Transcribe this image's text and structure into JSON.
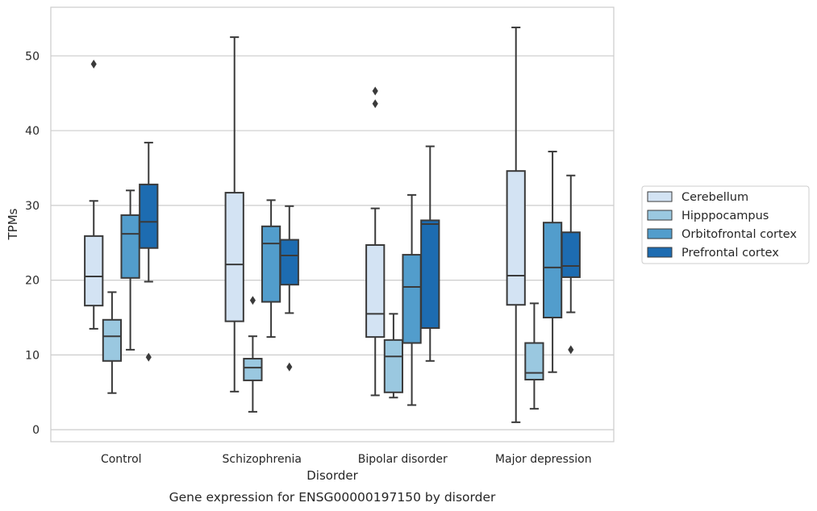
{
  "chart_data": {
    "type": "box",
    "title": "",
    "caption": "Gene expression for ENSG00000197150 by disorder",
    "xlabel": "Disorder",
    "ylabel": "TPMs",
    "ylim": [
      -1.6,
      56.5
    ],
    "yticks": [
      0,
      10,
      20,
      30,
      40,
      50
    ],
    "grid": "horizontal",
    "legend_position": "right",
    "categories": [
      "Control",
      "Schizophrenia",
      "Bipolar disorder",
      "Major depression"
    ],
    "series": [
      {
        "name": "Cerebellum",
        "color": "#d3e3f3",
        "boxes": [
          {
            "whisker_low": 13.5,
            "q1": 16.6,
            "median": 20.5,
            "q3": 25.9,
            "whisker_high": 30.6,
            "outliers": [
              48.9
            ]
          },
          {
            "whisker_low": 5.1,
            "q1": 14.5,
            "median": 22.1,
            "q3": 31.7,
            "whisker_high": 52.5,
            "outliers": []
          },
          {
            "whisker_low": 4.6,
            "q1": 12.4,
            "median": 15.5,
            "q3": 24.7,
            "whisker_high": 29.6,
            "outliers": [
              43.6,
              45.3
            ]
          },
          {
            "whisker_low": 1.0,
            "q1": 16.7,
            "median": 20.6,
            "q3": 34.6,
            "whisker_high": 53.8,
            "outliers": []
          }
        ]
      },
      {
        "name": "Hipppocampus",
        "color": "#9ac8e0",
        "boxes": [
          {
            "whisker_low": 4.9,
            "q1": 9.2,
            "median": 12.5,
            "q3": 14.7,
            "whisker_high": 18.4,
            "outliers": []
          },
          {
            "whisker_low": 2.4,
            "q1": 6.6,
            "median": 8.3,
            "q3": 9.5,
            "whisker_high": 12.5,
            "outliers": [
              17.3
            ]
          },
          {
            "whisker_low": 4.3,
            "q1": 5.0,
            "median": 9.8,
            "q3": 12.0,
            "whisker_high": 15.5,
            "outliers": []
          },
          {
            "whisker_low": 2.8,
            "q1": 6.7,
            "median": 7.6,
            "q3": 11.6,
            "whisker_high": 16.9,
            "outliers": []
          }
        ]
      },
      {
        "name": "Orbitofrontal cortex",
        "color": "#529dcc",
        "boxes": [
          {
            "whisker_low": 10.7,
            "q1": 20.3,
            "median": 26.2,
            "q3": 28.7,
            "whisker_high": 32.0,
            "outliers": []
          },
          {
            "whisker_low": 12.4,
            "q1": 17.1,
            "median": 24.9,
            "q3": 27.2,
            "whisker_high": 30.7,
            "outliers": []
          },
          {
            "whisker_low": 3.3,
            "q1": 11.6,
            "median": 19.1,
            "q3": 23.4,
            "whisker_high": 31.4,
            "outliers": []
          },
          {
            "whisker_low": 7.7,
            "q1": 15.0,
            "median": 21.7,
            "q3": 27.7,
            "whisker_high": 37.2,
            "outliers": []
          }
        ]
      },
      {
        "name": "Prefrontal cortex",
        "color": "#1d6cb1",
        "boxes": [
          {
            "whisker_low": 19.8,
            "q1": 24.3,
            "median": 27.8,
            "q3": 32.8,
            "whisker_high": 38.4,
            "outliers": [
              9.7
            ]
          },
          {
            "whisker_low": 15.6,
            "q1": 19.4,
            "median": 23.3,
            "q3": 25.4,
            "whisker_high": 29.9,
            "outliers": [
              8.4
            ]
          },
          {
            "whisker_low": 9.2,
            "q1": 13.6,
            "median": 27.5,
            "q3": 28.0,
            "whisker_high": 37.9,
            "outliers": []
          },
          {
            "whisker_low": 15.7,
            "q1": 20.4,
            "median": 21.9,
            "q3": 26.4,
            "whisker_high": 34.0,
            "outliers": [
              10.7
            ]
          }
        ]
      }
    ]
  }
}
